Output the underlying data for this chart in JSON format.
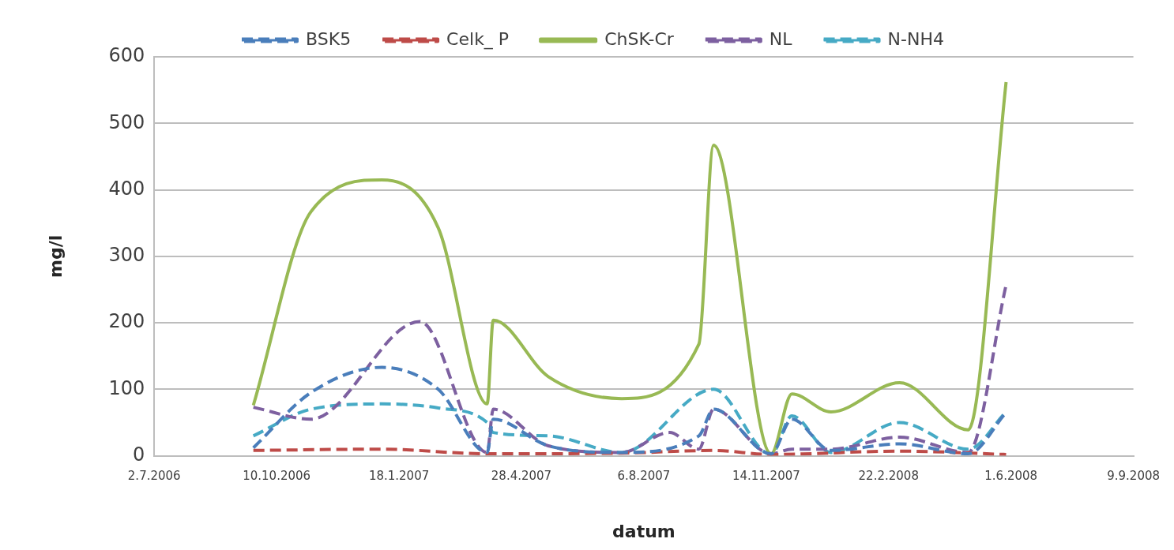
{
  "chart_data": {
    "type": "line",
    "xlabel": "datum",
    "ylabel": "mg/l",
    "xlim": [
      "2006-07-02",
      "2008-09-09"
    ],
    "xticks": [
      {
        "value": "2006-07-02",
        "label": "2.7.2006"
      },
      {
        "value": "2006-10-10",
        "label": "10.10.2006"
      },
      {
        "value": "2007-01-18",
        "label": "18.1.2007"
      },
      {
        "value": "2007-04-28",
        "label": "28.4.2007"
      },
      {
        "value": "2007-08-06",
        "label": "6.8.2007"
      },
      {
        "value": "2007-11-14",
        "label": "14.11.2007"
      },
      {
        "value": "2008-02-22",
        "label": "22.2.2008"
      },
      {
        "value": "2008-06-01",
        "label": "1.6.2008"
      },
      {
        "value": "2008-09-09",
        "label": "9.9.2008"
      }
    ],
    "ylim": [
      0,
      600
    ],
    "yticks": [
      0,
      100,
      200,
      300,
      400,
      500,
      600
    ],
    "grid": "y",
    "legend": "top",
    "marker": "none",
    "series": [
      {
        "name": "BSK5",
        "color": "#4a7ebb",
        "line_style": "dashed",
        "x": [
          "2006-09-21",
          "2006-11-07",
          "2007-01-04",
          "2007-02-19",
          "2007-03-31",
          "2007-04-05",
          "2007-05-20",
          "2007-07-19",
          "2007-09-20",
          "2007-10-02",
          "2007-11-18",
          "2007-12-05",
          "2008-01-06",
          "2008-03-02",
          "2008-04-27",
          "2008-05-28"
        ],
        "values": [
          12,
          95,
          133,
          100,
          5,
          55,
          15,
          5,
          30,
          70,
          3,
          55,
          8,
          18,
          3,
          65
        ]
      },
      {
        "name": "Celk_ P",
        "color": "#be4b48",
        "line_style": "dashed",
        "x": [
          "2006-09-21",
          "2007-01-04",
          "2007-03-31",
          "2007-07-19",
          "2007-10-02",
          "2007-11-18",
          "2008-03-02",
          "2008-05-28"
        ],
        "values": [
          8,
          10,
          3,
          4,
          8,
          2,
          7,
          2
        ]
      },
      {
        "name": "ChSK-Cr",
        "color": "#98b954",
        "line_style": "solid",
        "x": [
          "2006-09-21",
          "2006-11-07",
          "2007-01-04",
          "2007-02-19",
          "2007-03-31",
          "2007-04-05",
          "2007-05-20",
          "2007-07-19",
          "2007-09-20",
          "2007-10-02",
          "2007-11-18",
          "2007-12-05",
          "2008-01-06",
          "2008-03-02",
          "2008-04-27",
          "2008-05-28"
        ],
        "values": [
          76,
          367,
          415,
          343,
          78,
          204,
          119,
          86,
          168,
          467,
          3,
          93,
          66,
          110,
          39,
          562
        ]
      },
      {
        "name": "NL",
        "color": "#7d60a0",
        "line_style": "dashed",
        "x": [
          "2006-09-21",
          "2006-11-07",
          "2007-02-04",
          "2007-03-31",
          "2007-04-05",
          "2007-05-20",
          "2007-07-19",
          "2007-08-27",
          "2007-09-20",
          "2007-10-02",
          "2007-11-18",
          "2007-12-05",
          "2008-01-06",
          "2008-03-02",
          "2008-04-27",
          "2008-05-28"
        ],
        "values": [
          73,
          55,
          202,
          5,
          70,
          15,
          5,
          35,
          10,
          70,
          3,
          10,
          10,
          28,
          5,
          257
        ]
      },
      {
        "name": "N-NH4",
        "color": "#46aac5",
        "line_style": "dashed",
        "x": [
          "2006-09-21",
          "2006-11-07",
          "2007-01-04",
          "2007-02-19",
          "2007-03-31",
          "2007-04-05",
          "2007-05-20",
          "2007-07-19",
          "2007-10-02",
          "2007-11-18",
          "2007-12-05",
          "2008-01-06",
          "2008-03-02",
          "2008-04-27",
          "2008-05-28"
        ],
        "values": [
          30,
          70,
          78,
          72,
          50,
          35,
          30,
          5,
          100,
          2,
          60,
          5,
          50,
          10,
          66
        ]
      }
    ]
  }
}
